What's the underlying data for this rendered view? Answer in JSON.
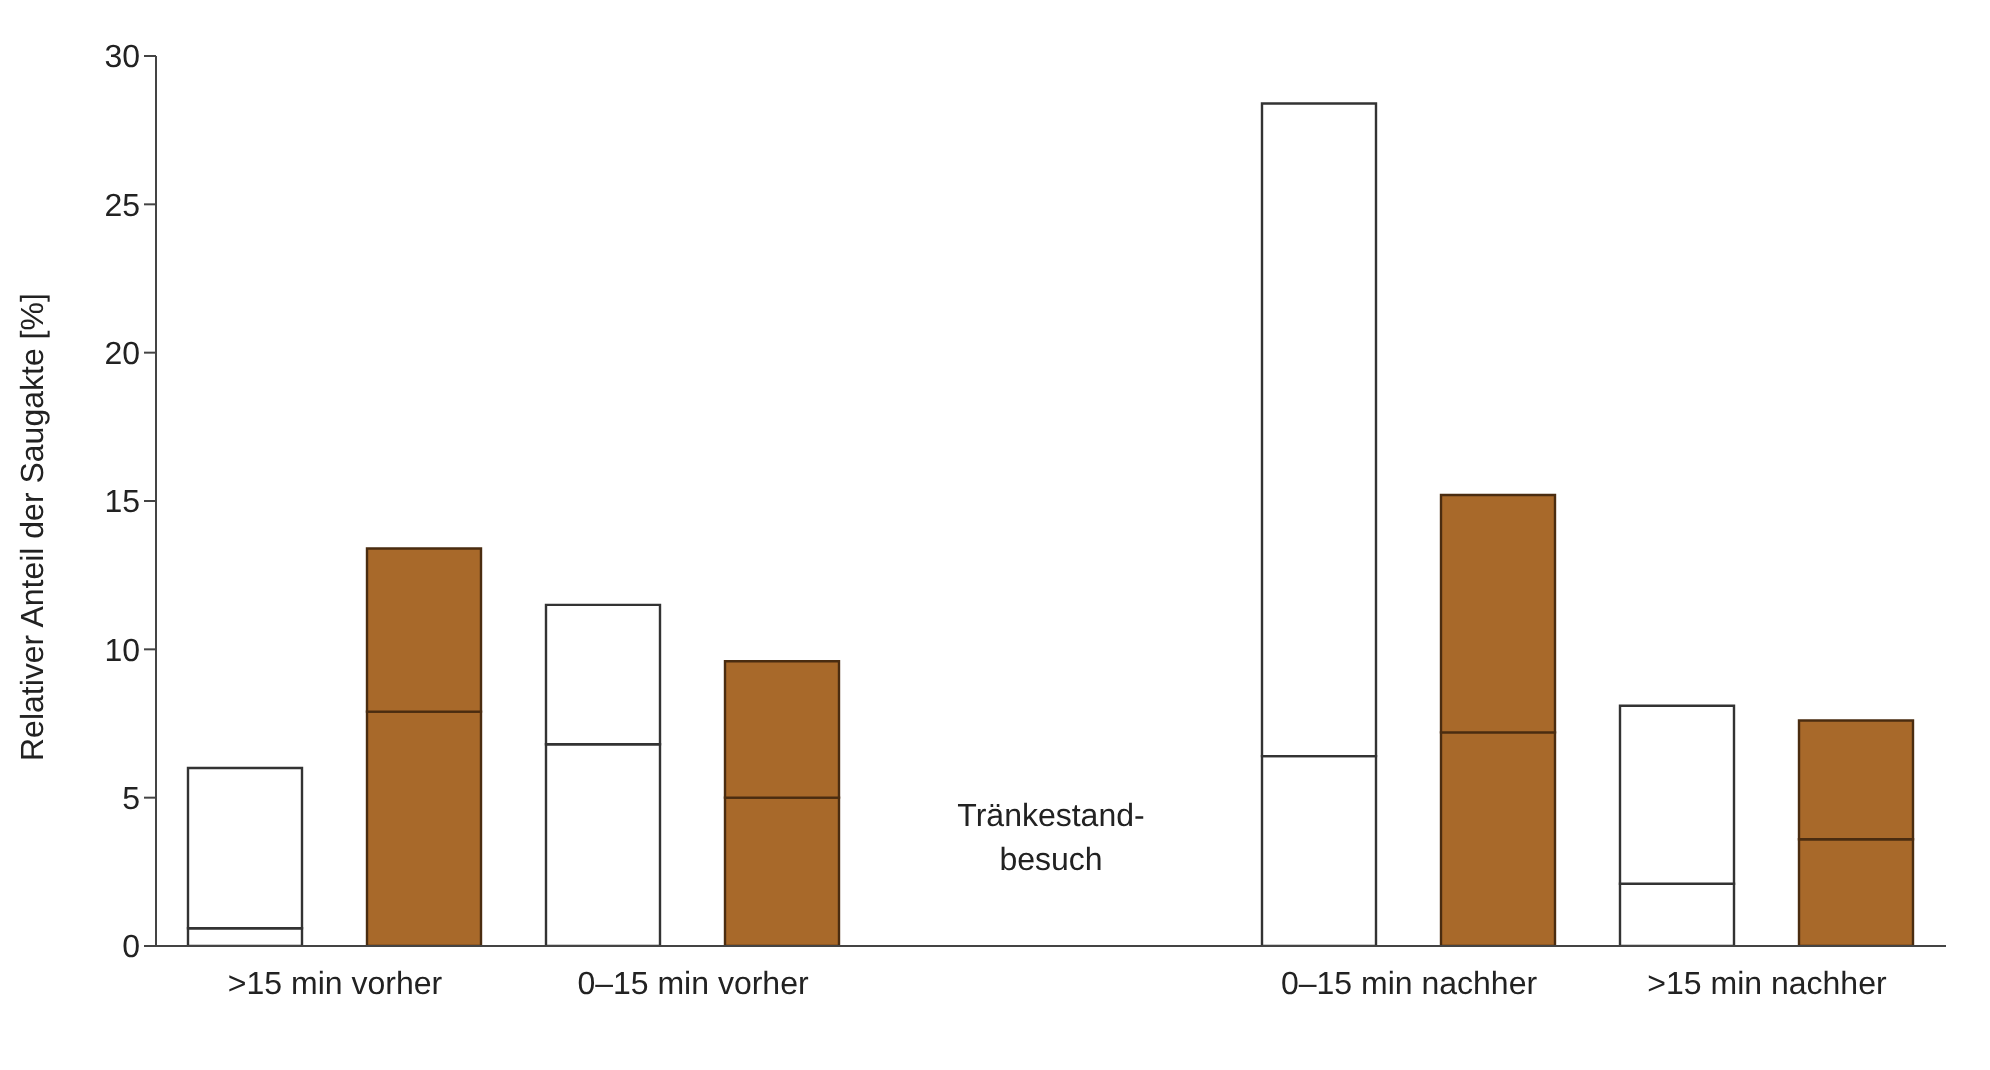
{
  "chart_data": {
    "type": "bar",
    "stacked": true,
    "ylabel": "Relativer Anteil der Saugakte [%]",
    "categories": [
      ">15 min vorher",
      null,
      "0–15 min vorher",
      null,
      null,
      null,
      "0–15 min nachher",
      null,
      ">15 min nachher",
      null
    ],
    "series": [
      {
        "colors": [
          "#ffffff",
          "#a8692a",
          "#ffffff",
          "#a8692a",
          null,
          null,
          "#ffffff",
          "#a8692a",
          "#ffffff",
          "#a8692a"
        ],
        "values": [
          0.6,
          7.9,
          6.8,
          5.0,
          null,
          null,
          6.4,
          7.2,
          2.1,
          3.6
        ]
      },
      {
        "colors": [
          "#ffffff",
          "#a8692a",
          "#ffffff",
          "#a8692a",
          null,
          null,
          "#ffffff",
          "#a8692a",
          "#ffffff",
          "#a8692a"
        ],
        "values": [
          5.4,
          5.5,
          4.7,
          4.6,
          null,
          null,
          22.0,
          8.0,
          6.0,
          4.0
        ]
      }
    ],
    "ylim": [
      0,
      30
    ],
    "yticks": [
      0,
      5,
      10,
      15,
      20,
      25,
      30
    ],
    "grid": false,
    "legend": false,
    "annotations": [
      "Tränkestand-\nbesuch"
    ]
  }
}
